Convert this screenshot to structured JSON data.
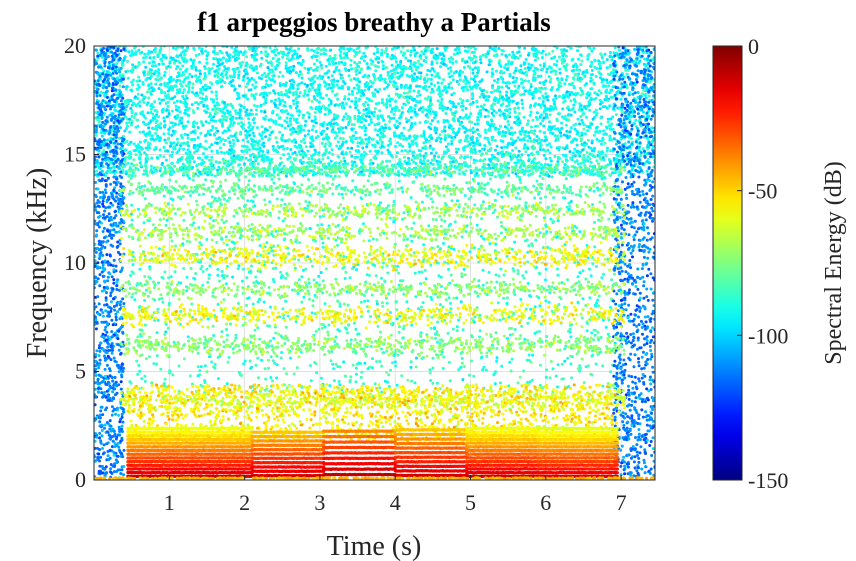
{
  "chart_data": {
    "type": "scatter",
    "title": "f1 arpeggios breathy a Partials",
    "xlabel": "Time (s)",
    "ylabel": "Frequency (kHz)",
    "xlim": [
      0,
      7.45
    ],
    "ylim": [
      0,
      20
    ],
    "x_ticks": [
      1,
      2,
      3,
      4,
      5,
      6,
      7
    ],
    "y_ticks": [
      0,
      5,
      10,
      15,
      20
    ],
    "grid": true,
    "colormap": "jet",
    "colorbar": {
      "label": "Spectral Energy (dB)",
      "range": [
        -150,
        0
      ],
      "ticks": [
        0,
        -50,
        -100,
        -150
      ]
    },
    "series": [
      {
        "note_segments": [
          {
            "t_start": 0.45,
            "t_end": 1.3,
            "f0_khz": 0.17,
            "energy_db": -12
          },
          {
            "t_start": 1.3,
            "t_end": 2.1,
            "f0_khz": 0.17,
            "energy_db": -12
          },
          {
            "t_start": 2.1,
            "t_end": 3.05,
            "f0_khz": 0.2,
            "energy_db": -12
          },
          {
            "t_start": 3.05,
            "t_end": 4.0,
            "f0_khz": 0.25,
            "energy_db": -10
          },
          {
            "t_start": 4.0,
            "t_end": 4.95,
            "f0_khz": 0.21,
            "energy_db": -12
          },
          {
            "t_start": 4.95,
            "t_end": 5.9,
            "f0_khz": 0.17,
            "energy_db": -12
          },
          {
            "t_start": 5.9,
            "t_end": 6.95,
            "f0_khz": 0.17,
            "energy_db": -14
          }
        ],
        "formant_bands_khz": [
          {
            "center": 3.7,
            "width": 0.9,
            "energy_db": -62
          },
          {
            "center": 6.2,
            "width": 0.8,
            "energy_db": -72
          },
          {
            "center": 7.6,
            "width": 0.8,
            "energy_db": -58
          },
          {
            "center": 8.8,
            "width": 0.6,
            "energy_db": -72
          },
          {
            "center": 10.3,
            "width": 0.9,
            "energy_db": -58
          },
          {
            "center": 11.4,
            "width": 0.6,
            "energy_db": -68
          },
          {
            "center": 12.4,
            "width": 0.6,
            "energy_db": -68
          },
          {
            "center": 13.4,
            "width": 0.5,
            "energy_db": -78
          },
          {
            "center": 14.3,
            "width": 0.5,
            "energy_db": -80
          }
        ],
        "noise_floor_db": -92
      }
    ]
  }
}
